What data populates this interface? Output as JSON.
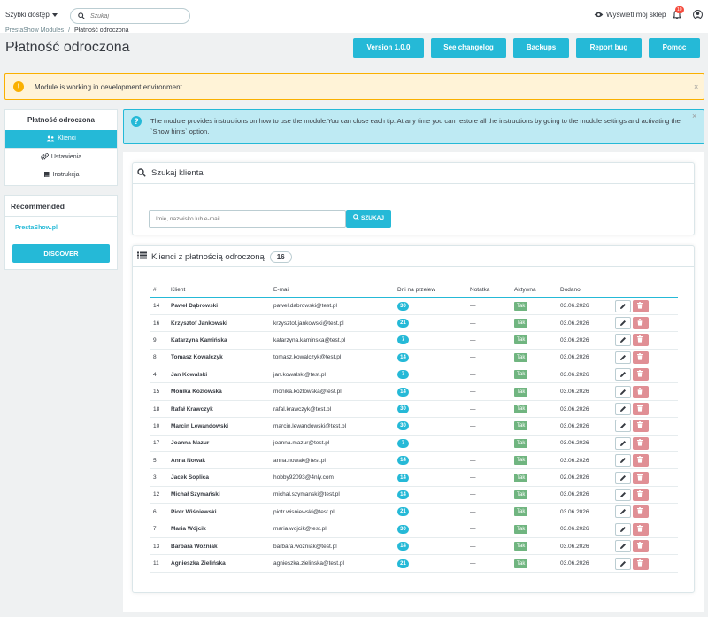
{
  "header": {
    "quick_access": "Szybki dostęp",
    "search_placeholder": "Szukaj",
    "view_shop": "Wyświetl mój sklep",
    "notifications_count": "10"
  },
  "breadcrumb": {
    "parent": "PrestaShow Modules",
    "separator": "/",
    "current": "Płatność odroczona"
  },
  "page_title": "Płatność odroczona",
  "toolbar": {
    "version": "Version 1.0.0",
    "changelog": "See changelog",
    "backups": "Backups",
    "report_bug": "Report bug",
    "help": "Pomoc"
  },
  "alerts": {
    "dev_env": "Module is working in development environment.",
    "hint": "The module provides instructions on how to use the module.You can close each tip. At any time you can restore all the instructions by going to the module settings and activating the `Show hints` option.",
    "close": "×"
  },
  "sidebar": {
    "title": "Płatność odroczona",
    "items": [
      {
        "label": "Klienci",
        "icon": "users-icon",
        "active": true
      },
      {
        "label": "Ustawienia",
        "icon": "cogs-icon",
        "active": false
      },
      {
        "label": "Instrukcja",
        "icon": "book-icon",
        "active": false
      }
    ],
    "recommended_title": "Recommended",
    "recommended_link": "PrestaShow.pl",
    "discover": "DISCOVER"
  },
  "search_panel": {
    "title": "Szukaj klienta",
    "placeholder": "Imię, nazwisko lub e-mail...",
    "button": "SZUKAJ"
  },
  "clients_panel": {
    "title": "Klienci z płatnością odroczoną",
    "count": "16",
    "columns": [
      "#",
      "Klient",
      "E-mail",
      "Dni na przelew",
      "Notatka",
      "Aktywna",
      "Dodano"
    ],
    "rows": [
      {
        "id": "14",
        "name": "Paweł Dąbrowski",
        "email": "pawel.dabrowski@test.pl",
        "days": "30",
        "note": "—",
        "active": "Tak",
        "added": "03.06.2026"
      },
      {
        "id": "16",
        "name": "Krzysztof Jankowski",
        "email": "krzysztof.jankowski@test.pl",
        "days": "21",
        "note": "—",
        "active": "Tak",
        "added": "03.06.2026"
      },
      {
        "id": "9",
        "name": "Katarzyna Kamińska",
        "email": "katarzyna.kaminska@test.pl",
        "days": "7",
        "note": "—",
        "active": "Tak",
        "added": "03.06.2026"
      },
      {
        "id": "8",
        "name": "Tomasz Kowalczyk",
        "email": "tomasz.kowalczyk@test.pl",
        "days": "14",
        "note": "—",
        "active": "Tak",
        "added": "03.06.2026"
      },
      {
        "id": "4",
        "name": "Jan Kowalski",
        "email": "jan.kowalski@test.pl",
        "days": "7",
        "note": "—",
        "active": "Tak",
        "added": "03.06.2026"
      },
      {
        "id": "15",
        "name": "Monika Kozłowska",
        "email": "monika.kozlowska@test.pl",
        "days": "14",
        "note": "—",
        "active": "Tak",
        "added": "03.06.2026"
      },
      {
        "id": "18",
        "name": "Rafał Krawczyk",
        "email": "rafal.krawczyk@test.pl",
        "days": "30",
        "note": "—",
        "active": "Tak",
        "added": "03.06.2026"
      },
      {
        "id": "10",
        "name": "Marcin Lewandowski",
        "email": "marcin.lewandowski@test.pl",
        "days": "30",
        "note": "—",
        "active": "Tak",
        "added": "03.06.2026"
      },
      {
        "id": "17",
        "name": "Joanna Mazur",
        "email": "joanna.mazur@test.pl",
        "days": "7",
        "note": "—",
        "active": "Tak",
        "added": "03.06.2026"
      },
      {
        "id": "5",
        "name": "Anna Nowak",
        "email": "anna.nowak@test.pl",
        "days": "14",
        "note": "—",
        "active": "Tak",
        "added": "03.06.2026"
      },
      {
        "id": "3",
        "name": "Jacek Soplica",
        "email": "hobby92093@4nly.com",
        "days": "14",
        "note": "—",
        "active": "Tak",
        "added": "02.06.2026"
      },
      {
        "id": "12",
        "name": "Michał Szymański",
        "email": "michal.szymanski@test.pl",
        "days": "14",
        "note": "—",
        "active": "Tak",
        "added": "03.06.2026"
      },
      {
        "id": "6",
        "name": "Piotr Wiśniewski",
        "email": "piotr.wisniewski@test.pl",
        "days": "21",
        "note": "—",
        "active": "Tak",
        "added": "03.06.2026"
      },
      {
        "id": "7",
        "name": "Maria Wójcik",
        "email": "maria.wojcik@test.pl",
        "days": "30",
        "note": "—",
        "active": "Tak",
        "added": "03.06.2026"
      },
      {
        "id": "13",
        "name": "Barbara Woźniak",
        "email": "barbara.wozniak@test.pl",
        "days": "14",
        "note": "—",
        "active": "Tak",
        "added": "03.06.2026"
      },
      {
        "id": "11",
        "name": "Agnieszka Zielińska",
        "email": "agnieszka.zielinska@test.pl",
        "days": "21",
        "note": "—",
        "active": "Tak",
        "added": "03.06.2026"
      }
    ],
    "row_actions": [
      "pencil-icon",
      "trash-icon"
    ]
  },
  "colors": {
    "primary": "#25b9d7",
    "warning": "#fab000",
    "success": "#70b580",
    "danger": "#e08f95"
  }
}
